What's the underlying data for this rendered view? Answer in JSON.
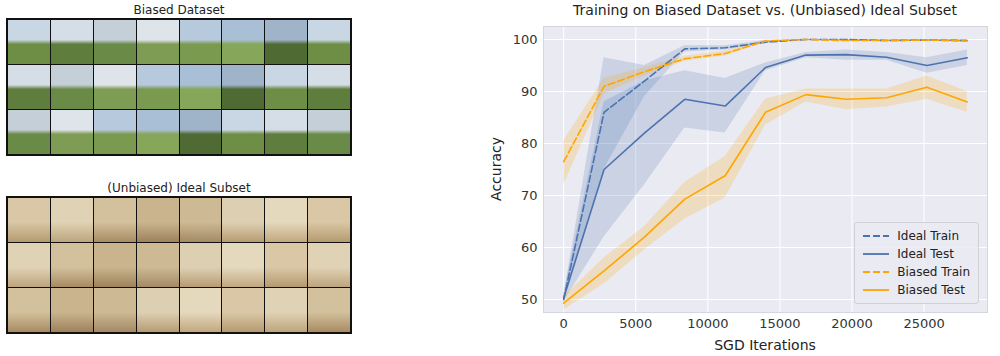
{
  "chart_data": {
    "type": "line",
    "title": "Training on Biased Dataset vs. (Unbiased) Ideal Subset",
    "x_label": "SGD Iterations",
    "y_label": "Accuracy",
    "x": [
      0,
      2800,
      5600,
      8400,
      11200,
      14000,
      16800,
      19600,
      22400,
      25200,
      28000
    ],
    "xlim": [
      -1400,
      29400
    ],
    "xticks": [
      0,
      5000,
      10000,
      15000,
      20000,
      25000
    ],
    "ylim": [
      47.5,
      102.5
    ],
    "yticks": [
      50,
      60,
      70,
      80,
      90,
      100
    ],
    "grid": true,
    "legend": "lower right",
    "series": [
      {
        "name": "Ideal Train",
        "color": "#4c72b0",
        "line_style": "dashed",
        "values": [
          50,
          86,
          92,
          98.2,
          98.4,
          99.5,
          100,
          100,
          99.8,
          99.9,
          99.8
        ],
        "lower": [
          49.5,
          75,
          89,
          97.6,
          98,
          99.2,
          99.9,
          99.9,
          99.6,
          99.7,
          99.6
        ],
        "upper": [
          50.5,
          96.5,
          95,
          98.8,
          98.8,
          99.8,
          100,
          100,
          100,
          100,
          100
        ]
      },
      {
        "name": "Ideal Test",
        "color": "#4c72b0",
        "line_style": "solid",
        "values": [
          50.3,
          75,
          82,
          88.5,
          87.2,
          94.6,
          97,
          97.1,
          96.6,
          95,
          96.5
        ],
        "lower": [
          49.5,
          62,
          72,
          83,
          82,
          94,
          96.5,
          96,
          96,
          93.5,
          95
        ],
        "upper": [
          51,
          88,
          92,
          94,
          92.5,
          95.5,
          97.5,
          98,
          97.5,
          96.5,
          98
        ]
      },
      {
        "name": "Biased Train",
        "color": "#ffa500",
        "line_style": "dashed",
        "values": [
          76.5,
          91,
          93.8,
          96.3,
          97.3,
          99.7,
          100,
          99.8,
          99.8,
          99.9,
          99.7
        ],
        "lower": [
          72,
          89.5,
          93,
          95.8,
          96.8,
          99.5,
          99.9,
          99.6,
          99.6,
          99.7,
          99.4
        ],
        "upper": [
          80.5,
          92.5,
          94.6,
          96.8,
          97.8,
          99.9,
          100,
          100,
          100,
          100,
          100
        ]
      },
      {
        "name": "Biased Test",
        "color": "#ffa500",
        "line_style": "solid",
        "values": [
          49.3,
          55.5,
          62,
          69.3,
          73.8,
          86,
          89.4,
          88.5,
          88.8,
          90.8,
          88
        ],
        "lower": [
          48,
          53,
          59.5,
          65.5,
          69.5,
          83.5,
          88,
          86.5,
          87,
          88.5,
          86
        ],
        "upper": [
          50.5,
          58,
          64,
          72.5,
          77.5,
          88.5,
          90.5,
          90.5,
          90.5,
          93,
          90
        ]
      }
    ]
  },
  "figure": {
    "panels": [
      {
        "title": "Biased Dataset",
        "rows": 3,
        "cols": 8
      },
      {
        "title": "(Unbiased) Ideal Subset",
        "rows": 3,
        "cols": 8
      }
    ]
  }
}
